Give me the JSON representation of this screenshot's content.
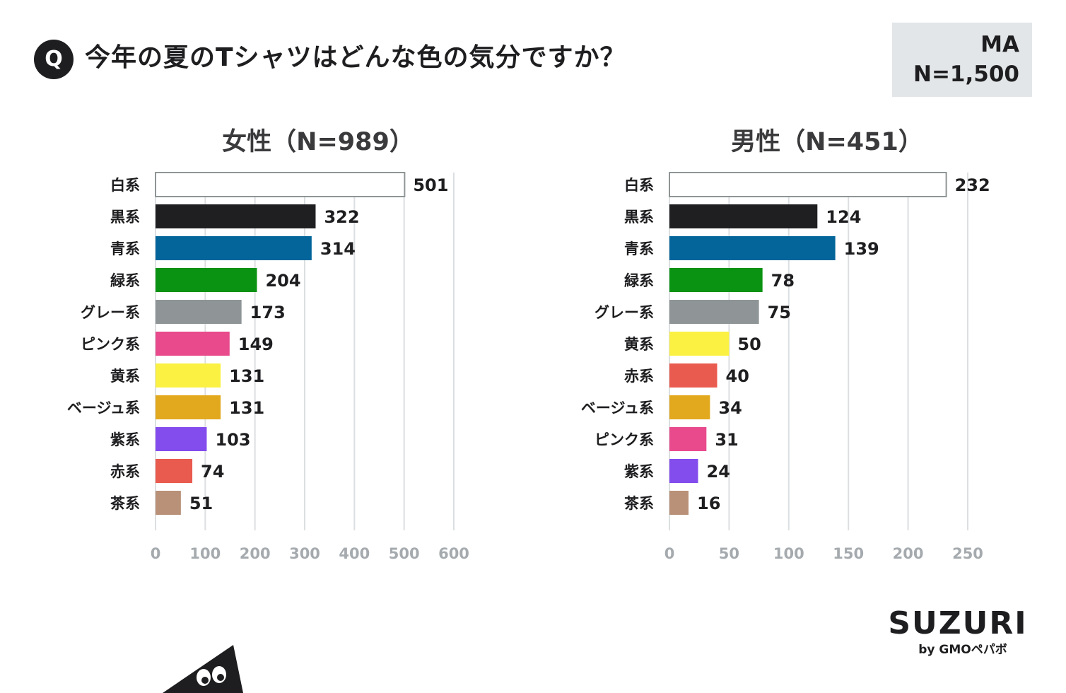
{
  "header": {
    "q_badge": "Q",
    "question": "今年の夏のTシャツはどんな色の気分ですか？",
    "answer_type": "MA",
    "sample_size": "N=1,500"
  },
  "logo": {
    "main": "SUZURI",
    "sub": "by GMOペパボ"
  },
  "chart_data": [
    {
      "type": "bar",
      "orientation": "horizontal",
      "title": "女性（N=989）",
      "categories": [
        "白系",
        "黒系",
        "青系",
        "緑系",
        "グレー系",
        "ピンク系",
        "黄系",
        "ベージュ系",
        "紫系",
        "赤系",
        "茶系"
      ],
      "values": [
        501,
        322,
        314,
        204,
        173,
        149,
        131,
        131,
        103,
        74,
        51
      ],
      "colors": [
        "#ffffff",
        "#1f1f22",
        "#03659a",
        "#0a9212",
        "#8f9596",
        "#e84a8c",
        "#faf142",
        "#e2a91e",
        "#834ced",
        "#e95b4e",
        "#b89178"
      ],
      "xlim": [
        0,
        600
      ],
      "ticks": [
        0,
        100,
        200,
        300,
        400,
        500,
        600
      ],
      "grid": true
    },
    {
      "type": "bar",
      "orientation": "horizontal",
      "title": "男性（N=451）",
      "categories": [
        "白系",
        "黒系",
        "青系",
        "緑系",
        "グレー系",
        "黄系",
        "赤系",
        "ベージュ系",
        "ピンク系",
        "紫系",
        "茶系"
      ],
      "values": [
        232,
        124,
        139,
        78,
        75,
        50,
        40,
        34,
        31,
        24,
        16
      ],
      "colors": [
        "#ffffff",
        "#1f1f22",
        "#03659a",
        "#0a9212",
        "#8f9596",
        "#faf142",
        "#e95b4e",
        "#e2a91e",
        "#e84a8c",
        "#834ced",
        "#b89178"
      ],
      "xlim": [
        0,
        250
      ],
      "ticks": [
        0,
        50,
        100,
        150,
        200,
        250
      ],
      "grid": true
    }
  ]
}
